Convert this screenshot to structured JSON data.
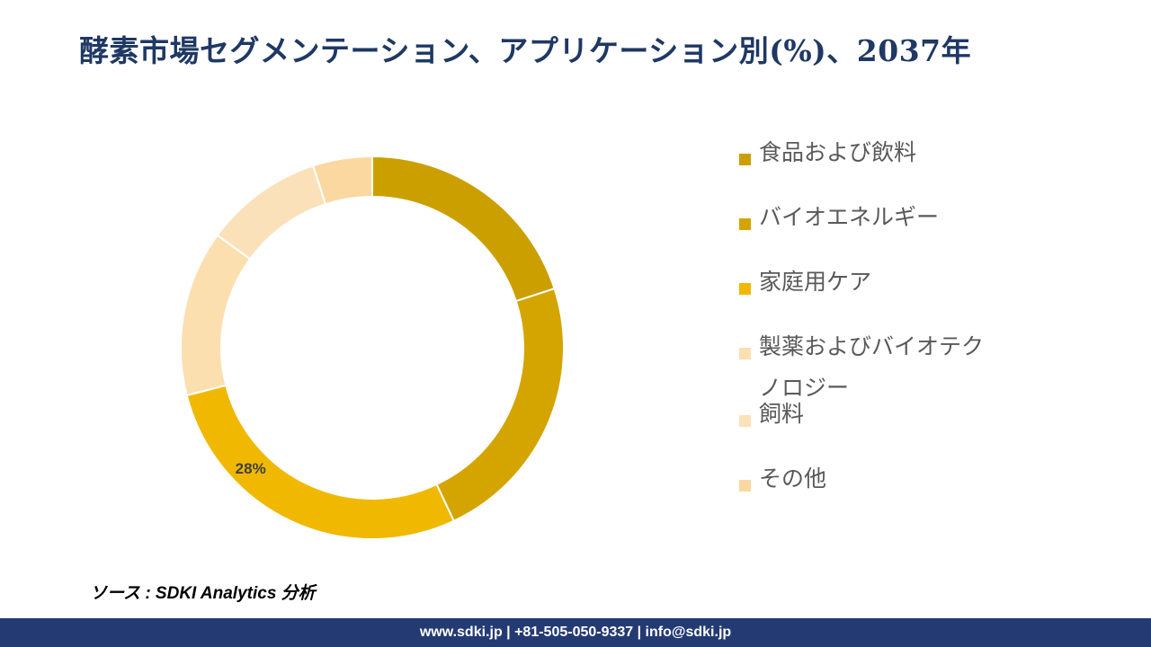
{
  "chart_data": {
    "type": "pie",
    "title": "酵素市場セグメンテーション、アプリケーション別(%)、2037年",
    "categories": [
      "食品および飲料",
      "バイオエネルギー",
      "家庭用ケア",
      "製薬およびバイオテクノロジー",
      "飼料",
      "その他"
    ],
    "values": [
      20,
      23,
      28,
      14,
      10,
      5
    ],
    "colors": [
      "#cc9f00",
      "#d4a400",
      "#f0b800",
      "#fbdfae",
      "#fbe1b9",
      "#fad8a0"
    ],
    "data_labels": [
      "",
      "",
      "28%",
      "",
      "",
      ""
    ],
    "legend_position": "right"
  },
  "source": "ソース : SDKI Analytics 分析",
  "footer": "www.sdki.jp | +81-505-050-9337 | info@sdki.jp"
}
